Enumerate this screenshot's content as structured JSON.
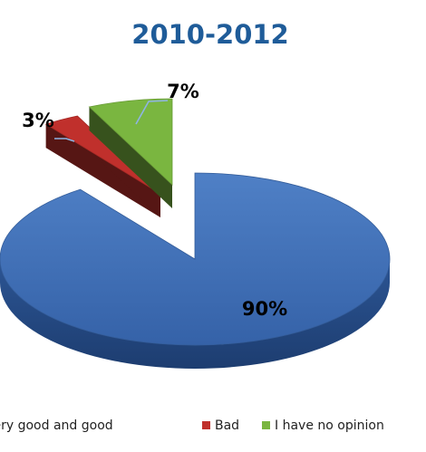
{
  "chart_data": {
    "type": "pie",
    "title": "2010-2012",
    "title_color": "#1f5c99",
    "style": "3d-exploded",
    "categories": [
      "Very good and good",
      "Bad",
      "I have no opinion"
    ],
    "values": [
      90,
      3,
      7
    ],
    "value_labels": [
      "90%",
      "3%",
      "7%"
    ],
    "colors": [
      "#3d6db5",
      "#c0302c",
      "#7ab640"
    ],
    "legend_position": "bottom"
  }
}
